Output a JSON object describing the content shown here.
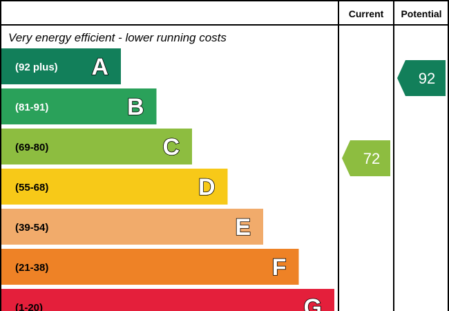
{
  "chart_data": {
    "type": "bar",
    "title": "",
    "subtitle": "Very energy efficient - lower running costs",
    "columns": {
      "current": "Current",
      "potential": "Potential"
    },
    "bands": [
      {
        "letter": "A",
        "range": "(92 plus)",
        "color": "#127f5a",
        "text_color": "#ffffff"
      },
      {
        "letter": "B",
        "range": "(81-91)",
        "color": "#2aa15a",
        "text_color": "#ffffff"
      },
      {
        "letter": "C",
        "range": "(69-80)",
        "color": "#8dbd40",
        "text_color": "#000000"
      },
      {
        "letter": "D",
        "range": "(55-68)",
        "color": "#f7c918",
        "text_color": "#000000"
      },
      {
        "letter": "E",
        "range": "(39-54)",
        "color": "#f1ab6b",
        "text_color": "#000000"
      },
      {
        "letter": "F",
        "range": "(21-38)",
        "color": "#ee8226",
        "text_color": "#000000"
      },
      {
        "letter": "G",
        "range": "(1-20)",
        "color": "#e41f3b",
        "text_color": "#000000"
      }
    ],
    "current": {
      "value": 72,
      "label": "72",
      "band": "C",
      "color": "#8dbd40"
    },
    "potential": {
      "value": 92,
      "label": "92",
      "band": "A",
      "color": "#127f5a"
    }
  }
}
